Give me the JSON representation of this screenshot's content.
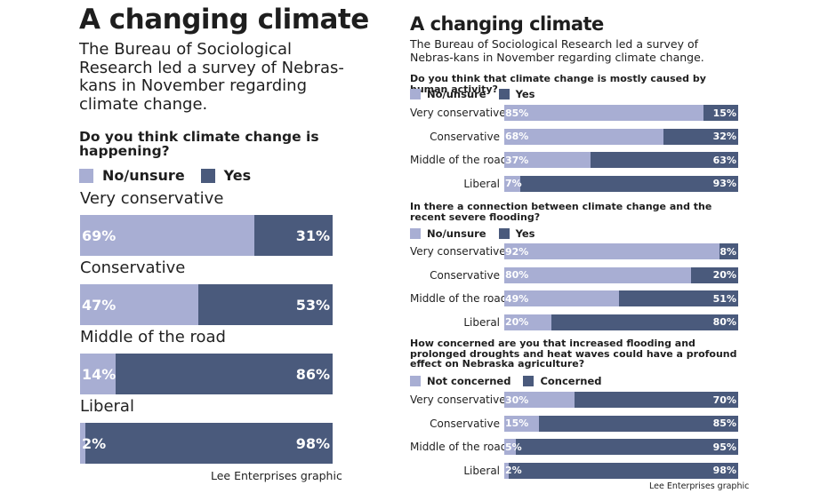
{
  "colors": {
    "no": "#a8aed3",
    "yes": "#4a5a7c"
  },
  "left_panel": {
    "title": "A changing climate",
    "intro": "The Bureau of Sociological Research led a survey of Nebras-kans in November regarding climate change.",
    "credit": "Lee Enterprises graphic"
  },
  "right_panel": {
    "title": "A changing climate",
    "intro": "The Bureau of Sociological Research led a survey of Nebras-kans in November regarding climate change.",
    "credit": "Lee Enterprises graphic"
  },
  "chart_data": [
    {
      "type": "bar",
      "orientation": "horizontal",
      "stacked": true,
      "title": "Do you think climate change is happening?",
      "categories": [
        "Very conservative",
        "Conservative",
        "Middle of the road",
        "Liberal"
      ],
      "series": [
        {
          "name": "No/unsure",
          "values": [
            69,
            47,
            14,
            2
          ],
          "labels": [
            "69%",
            "47%",
            "14%",
            "2%"
          ]
        },
        {
          "name": "Yes",
          "values": [
            31,
            53,
            86,
            98
          ],
          "labels": [
            "31%",
            "53%",
            "86%",
            "98%"
          ]
        }
      ],
      "xlim": [
        0,
        100
      ]
    },
    {
      "type": "bar",
      "orientation": "horizontal",
      "stacked": true,
      "title": "Do you think that climate change is mostly caused by human activity?",
      "categories": [
        "Very conservative",
        "Conservative",
        "Middle of the road",
        "Liberal"
      ],
      "series": [
        {
          "name": "No/unsure",
          "values": [
            85,
            68,
            37,
            7
          ],
          "labels": [
            "85%",
            "68%",
            "37%",
            "7%"
          ]
        },
        {
          "name": "Yes",
          "values": [
            15,
            32,
            63,
            93
          ],
          "labels": [
            "15%",
            "32%",
            "63%",
            "93%"
          ]
        }
      ],
      "xlim": [
        0,
        100
      ]
    },
    {
      "type": "bar",
      "orientation": "horizontal",
      "stacked": true,
      "title": "In there a connection between climate change and the recent severe flooding?",
      "categories": [
        "Very conservative",
        "Conservative",
        "Middle of the road",
        "Liberal"
      ],
      "series": [
        {
          "name": "No/unsure",
          "values": [
            92,
            80,
            49,
            20
          ],
          "labels": [
            "92%",
            "80%",
            "49%",
            "20%"
          ]
        },
        {
          "name": "Yes",
          "values": [
            8,
            20,
            51,
            80
          ],
          "labels": [
            "8%",
            "20%",
            "51%",
            "80%"
          ]
        }
      ],
      "xlim": [
        0,
        100
      ]
    },
    {
      "type": "bar",
      "orientation": "horizontal",
      "stacked": true,
      "title": "How concerned are you that increased flooding and prolonged droughts and heat waves could have a profound effect on Nebraska agriculture?",
      "categories": [
        "Very conservative",
        "Conservative",
        "Middle of the road",
        "Liberal"
      ],
      "series": [
        {
          "name": "Not concerned",
          "values": [
            30,
            15,
            5,
            2
          ],
          "labels": [
            "30%",
            "15%",
            "5%",
            "2%"
          ]
        },
        {
          "name": "Concerned",
          "values": [
            70,
            85,
            95,
            98
          ],
          "labels": [
            "70%",
            "85%",
            "95%",
            "98%"
          ]
        }
      ],
      "xlim": [
        0,
        100
      ]
    }
  ]
}
